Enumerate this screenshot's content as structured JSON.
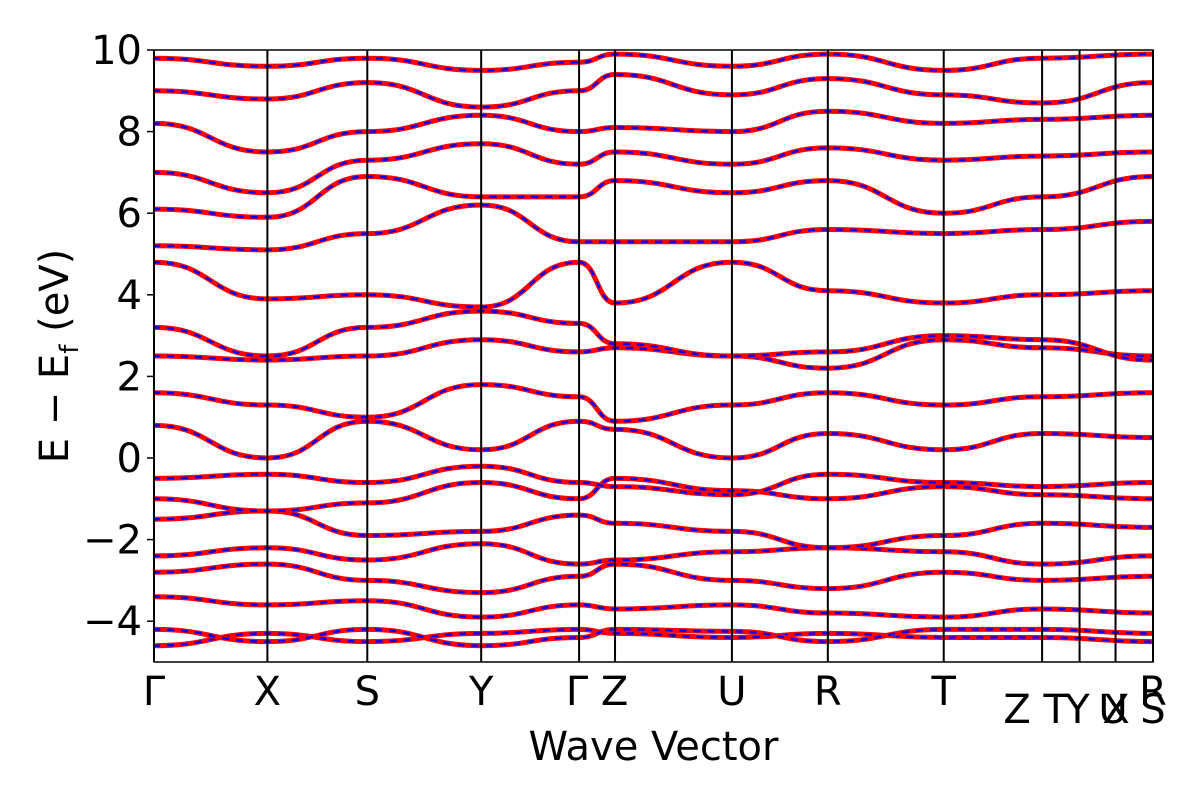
{
  "chart_data": {
    "type": "line",
    "title": "",
    "xlabel": "Wave Vector",
    "ylabel": "E − E_f (eV)",
    "ylabel_parts": {
      "prefix": "E − E",
      "subscript": "f",
      "suffix": " (eV)"
    },
    "ylim": [
      -5,
      10
    ],
    "yticks": [
      10,
      8,
      6,
      4,
      2,
      0,
      -2,
      -4
    ],
    "ytick_labels": [
      "10",
      "8",
      "6",
      "4",
      "2",
      "0",
      "−2",
      "−4"
    ],
    "kpath_positions": [
      0,
      0.1135,
      0.2135,
      0.3275,
      0.4255,
      0.4615,
      0.5785,
      0.6745,
      0.7905,
      0.889,
      0.9265,
      0.9625,
      1.0
    ],
    "kpath_labels": [
      "Γ",
      "X",
      "S",
      "Y",
      "Γ Z",
      "U",
      "R",
      "T",
      "Z T",
      "Y X",
      "U S",
      "R"
    ],
    "kpath_label_positions": [
      0,
      0.1135,
      0.2135,
      0.3275,
      0.4435,
      0.5785,
      0.6745,
      0.7905,
      0.8825,
      0.9445,
      0.979,
      1.0
    ],
    "kpath_label_rows": [
      0,
      0,
      0,
      0,
      0,
      0,
      0,
      0,
      1,
      1,
      1,
      0
    ],
    "grid": false,
    "series": [
      {
        "color": "#ff0000",
        "style": "solid",
        "bands": [
          {
            "x": [
              0,
              0.1135,
              0.2135,
              0.3275,
              0.4255,
              0.4615,
              0.5785,
              0.6745,
              0.7905,
              0.889,
              1.0
            ],
            "y": [
              -4.6,
              -4.3,
              -4.5,
              -4.3,
              -4.2,
              -4.3,
              -4.4,
              -4.3,
              -4.4,
              -4.4,
              -4.5
            ]
          },
          {
            "x": [
              0,
              0.1135,
              0.2135,
              0.3275,
              0.4255,
              0.4615,
              0.5785,
              0.6745,
              0.7905,
              0.889,
              1.0
            ],
            "y": [
              -4.2,
              -4.5,
              -4.2,
              -4.6,
              -4.4,
              -4.2,
              -4.25,
              -4.5,
              -4.2,
              -4.2,
              -4.3
            ]
          },
          {
            "x": [
              0,
              0.1135,
              0.2135,
              0.3275,
              0.4255,
              0.4615,
              0.5785,
              0.6745,
              0.7905,
              0.889,
              1.0
            ],
            "y": [
              -3.4,
              -3.6,
              -3.5,
              -3.9,
              -3.6,
              -3.7,
              -3.6,
              -3.8,
              -3.9,
              -3.7,
              -3.8
            ]
          },
          {
            "x": [
              0,
              0.1135,
              0.2135,
              0.3275,
              0.4255,
              0.4615,
              0.5785,
              0.6745,
              0.7905,
              0.889,
              1.0
            ],
            "y": [
              -2.8,
              -2.6,
              -3.0,
              -3.3,
              -2.9,
              -2.6,
              -3.0,
              -3.2,
              -2.8,
              -3.0,
              -2.9
            ]
          },
          {
            "x": [
              0,
              0.1135,
              0.2135,
              0.3275,
              0.4255,
              0.4615,
              0.5785,
              0.6745,
              0.7905,
              0.889,
              1.0
            ],
            "y": [
              -2.4,
              -2.2,
              -2.5,
              -2.1,
              -2.6,
              -2.5,
              -2.3,
              -2.2,
              -2.3,
              -2.6,
              -2.4
            ]
          },
          {
            "x": [
              0,
              0.1135,
              0.2135,
              0.3275,
              0.4255,
              0.4615,
              0.5785,
              0.6745,
              0.7905,
              0.889,
              1.0
            ],
            "y": [
              -1.5,
              -1.3,
              -1.9,
              -1.8,
              -1.4,
              -1.6,
              -1.8,
              -2.2,
              -1.9,
              -1.6,
              -1.7
            ]
          },
          {
            "x": [
              0,
              0.1135,
              0.2135,
              0.3275,
              0.4255,
              0.4615,
              0.5785,
              0.6745,
              0.7905,
              0.889,
              1.0
            ],
            "y": [
              -1.0,
              -1.3,
              -1.1,
              -0.6,
              -1.0,
              -0.5,
              -0.8,
              -1.0,
              -0.7,
              -0.9,
              -1.0
            ]
          },
          {
            "x": [
              0,
              0.1135,
              0.2135,
              0.3275,
              0.4255,
              0.4615,
              0.5785,
              0.6745,
              0.7905,
              0.889,
              1.0
            ],
            "y": [
              -0.5,
              -0.4,
              -0.6,
              -0.2,
              -0.6,
              -0.7,
              -0.9,
              -0.4,
              -0.6,
              -0.7,
              -0.6
            ]
          },
          {
            "x": [
              0,
              0.1135,
              0.2135,
              0.3275,
              0.4255,
              0.4615,
              0.5785,
              0.6745,
              0.7905,
              0.889,
              1.0
            ],
            "y": [
              0.8,
              0.0,
              0.9,
              0.2,
              0.9,
              0.7,
              0.0,
              0.6,
              0.2,
              0.6,
              0.5
            ]
          },
          {
            "x": [
              0,
              0.1135,
              0.2135,
              0.3275,
              0.4255,
              0.4615,
              0.5785,
              0.6745,
              0.7905,
              0.889,
              1.0
            ],
            "y": [
              1.6,
              1.3,
              1.0,
              1.8,
              1.5,
              0.9,
              1.3,
              1.6,
              1.3,
              1.5,
              1.6
            ]
          },
          {
            "x": [
              0,
              0.1135,
              0.2135,
              0.3275,
              0.4255,
              0.4615,
              0.5785,
              0.6745,
              0.7905,
              0.889,
              1.0
            ],
            "y": [
              2.5,
              2.4,
              2.5,
              2.9,
              2.6,
              2.7,
              2.5,
              2.2,
              2.9,
              2.7,
              2.5
            ]
          },
          {
            "x": [
              0,
              0.1135,
              0.2135,
              0.3275,
              0.4255,
              0.4615,
              0.5785,
              0.6745,
              0.7905,
              0.889,
              1.0
            ],
            "y": [
              3.2,
              2.5,
              3.2,
              3.6,
              3.3,
              2.8,
              2.5,
              2.6,
              3.0,
              2.9,
              2.4
            ]
          },
          {
            "x": [
              0,
              0.1135,
              0.2135,
              0.3275,
              0.4255,
              0.4615,
              0.5785,
              0.6745,
              0.7905,
              0.889,
              1.0
            ],
            "y": [
              4.8,
              3.9,
              4.0,
              3.7,
              4.8,
              3.8,
              4.8,
              4.1,
              3.8,
              4.0,
              4.1
            ]
          },
          {
            "x": [
              0,
              0.1135,
              0.2135,
              0.3275,
              0.4255,
              0.4615,
              0.5785,
              0.6745,
              0.7905,
              0.889,
              1.0
            ],
            "y": [
              5.2,
              5.1,
              5.5,
              6.2,
              5.3,
              5.3,
              5.3,
              5.6,
              5.5,
              5.6,
              5.8
            ]
          },
          {
            "x": [
              0,
              0.1135,
              0.2135,
              0.3275,
              0.4255,
              0.4615,
              0.5785,
              0.6745,
              0.7905,
              0.889,
              1.0
            ],
            "y": [
              6.1,
              5.9,
              6.9,
              6.4,
              6.4,
              6.8,
              6.5,
              6.8,
              6.0,
              6.4,
              6.9
            ]
          },
          {
            "x": [
              0,
              0.1135,
              0.2135,
              0.3275,
              0.4255,
              0.4615,
              0.5785,
              0.6745,
              0.7905,
              0.889,
              1.0
            ],
            "y": [
              7.0,
              6.5,
              7.3,
              7.7,
              7.2,
              7.5,
              7.2,
              7.6,
              7.3,
              7.4,
              7.5
            ]
          },
          {
            "x": [
              0,
              0.1135,
              0.2135,
              0.3275,
              0.4255,
              0.4615,
              0.5785,
              0.6745,
              0.7905,
              0.889,
              1.0
            ],
            "y": [
              8.2,
              7.5,
              8.0,
              8.4,
              8.0,
              8.1,
              8.0,
              8.5,
              8.2,
              8.3,
              8.4
            ]
          },
          {
            "x": [
              0,
              0.1135,
              0.2135,
              0.3275,
              0.4255,
              0.4615,
              0.5785,
              0.6745,
              0.7905,
              0.889,
              1.0
            ],
            "y": [
              9.0,
              8.8,
              9.2,
              8.6,
              9.0,
              9.4,
              8.9,
              9.3,
              8.9,
              8.7,
              9.2
            ]
          },
          {
            "x": [
              0,
              0.1135,
              0.2135,
              0.3275,
              0.4255,
              0.4615,
              0.5785,
              0.6745,
              0.7905,
              0.889,
              1.0
            ],
            "y": [
              9.8,
              9.6,
              9.8,
              9.5,
              9.7,
              9.9,
              9.6,
              9.9,
              9.5,
              9.8,
              9.9
            ]
          }
        ]
      },
      {
        "color": "#0000ff",
        "style": "dashed",
        "bands": "same as red series (overlapping)"
      }
    ]
  }
}
